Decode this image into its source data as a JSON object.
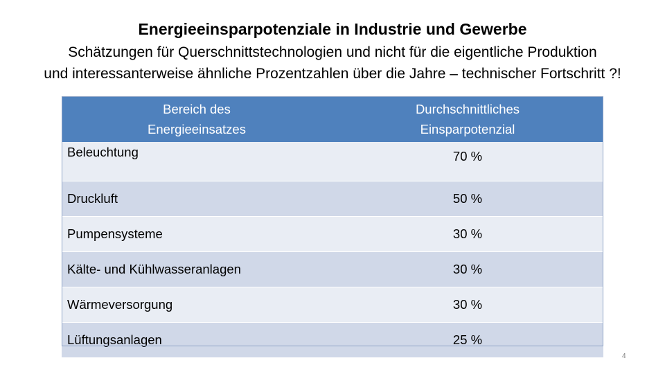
{
  "slide": {
    "title": "Energieeinsparpotenziale in Industrie und Gewerbe",
    "subtitle_line1": "Schätzungen für Querschnittstechnologien und nicht für die eigentliche Produktion",
    "subtitle_line2": "und interessanterweise ähnliche Prozentzahlen über die Jahre – technischer Fortschritt ?!",
    "page_number": "4"
  },
  "table": {
    "headers": [
      "Bereich des\nEnergieeinsatzes",
      "Durchschnittliches\nEinsparpotenzial"
    ],
    "rows": [
      {
        "area": "Beleuchtung",
        "value": "70 %"
      },
      {
        "area": "Druckluft",
        "value": "50 %"
      },
      {
        "area": "Pumpensysteme",
        "value": "30 %"
      },
      {
        "area": "Kälte- und Kühlwasseranlagen",
        "value": "30 %"
      },
      {
        "area": "Wärmeversorgung",
        "value": "30 %"
      },
      {
        "area": "Lüftungsanlagen",
        "value": "25 %"
      }
    ]
  },
  "colors": {
    "header_bg": "#4f81bd",
    "row_alt_bg": "#d0d8e8",
    "row_plain_bg": "#e9edf4"
  }
}
